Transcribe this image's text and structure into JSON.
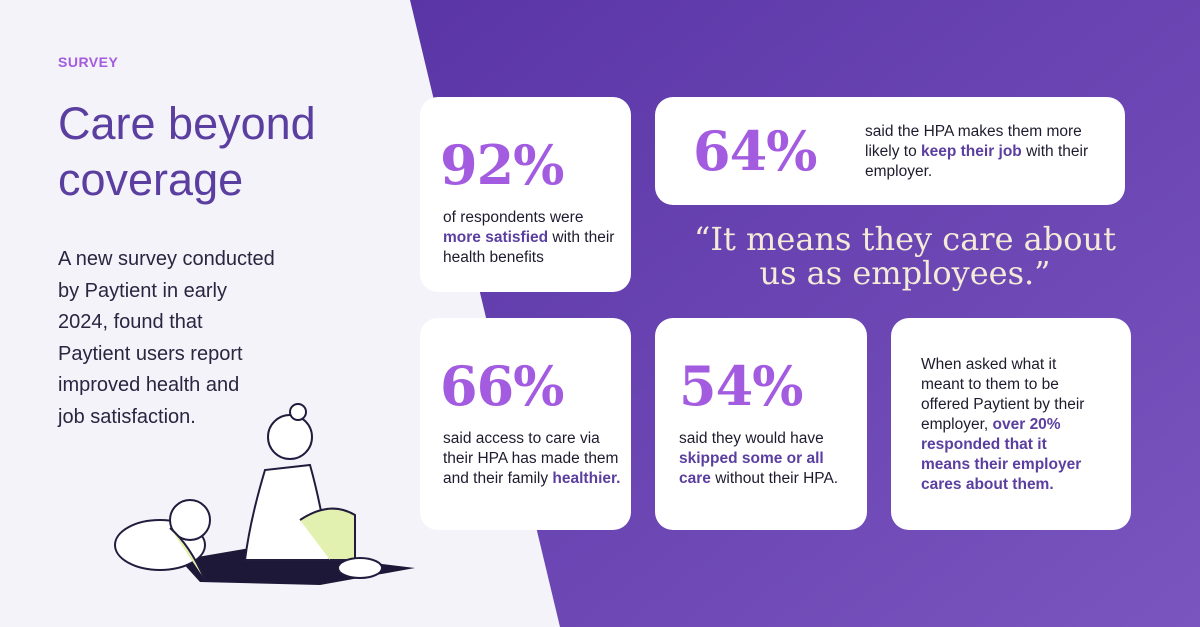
{
  "header": {
    "eyebrow": "SURVEY",
    "title_lines": [
      "Care beyond",
      "coverage"
    ],
    "intro_lines": [
      "A new survey conducted",
      "by Paytient in early",
      "2024, found that",
      "Paytient users report",
      "improved health and",
      "job satisfaction."
    ]
  },
  "quote": {
    "lines": [
      "“It means they care about",
      "us as employees.”"
    ]
  },
  "cards": [
    {
      "stat": "92%",
      "text": [
        "of respondents were ",
        "more satisfied",
        " with their health benefits"
      ]
    },
    {
      "stat": "64%",
      "text": [
        "said the HPA makes them more likely to ",
        "keep their job",
        " with their employer."
      ]
    },
    {
      "stat": "66%",
      "text": [
        "said access to care via their HPA has made them and their family ",
        "healthier."
      ]
    },
    {
      "stat": "54%",
      "text": [
        "said they would have ",
        "skipped some or all care",
        " without their HPA."
      ]
    },
    {
      "text": [
        "When asked what it meant to them to be offered Paytient by their employer, ",
        "over 20% responded that it means their employer cares about them."
      ]
    }
  ]
}
